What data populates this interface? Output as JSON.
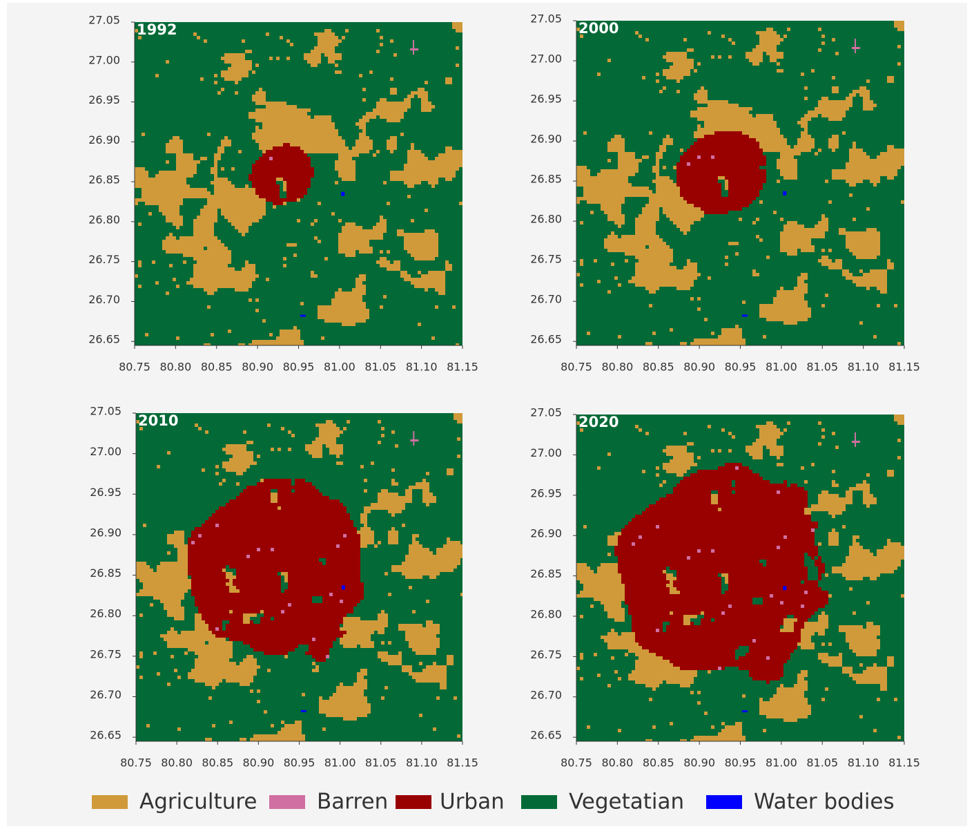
{
  "chart_data": [
    {
      "type": "map",
      "title": "1992",
      "xlim": [
        80.75,
        81.15
      ],
      "ylim": [
        26.645,
        27.05
      ],
      "xticks": [
        80.75,
        {
          "value": 80.8,
          "label": "80.80"
        },
        80.85,
        {
          "value": 80.9,
          "label": "80.90"
        },
        80.95,
        {
          "value": 81,
          "label": "81.00"
        },
        81.05,
        {
          "value": 81.1,
          "label": "81.10"
        },
        81.15
      ],
      "yticks": [
        26.65,
        {
          "value": 26.7,
          "label": "26.70"
        },
        26.75,
        {
          "value": 26.8,
          "label": "26.80"
        },
        26.85,
        {
          "value": 26.9,
          "label": "26.90"
        },
        26.95,
        {
          "value": 27,
          "label": "27.00"
        },
        27.05
      ]
    },
    {
      "type": "map",
      "title": "2000",
      "xlim": [
        80.75,
        81.15
      ],
      "ylim": [
        26.645,
        27.05
      ],
      "xticks": [
        80.75,
        {
          "value": 80.8,
          "label": "80.80"
        },
        80.85,
        {
          "value": 80.9,
          "label": "80.90"
        },
        80.95,
        {
          "value": 81,
          "label": "81.00"
        },
        81.05,
        {
          "value": 81.1,
          "label": "81.10"
        },
        81.15
      ],
      "yticks": [
        26.65,
        {
          "value": 26.7,
          "label": "26.70"
        },
        26.75,
        {
          "value": 26.8,
          "label": "26.80"
        },
        26.85,
        {
          "value": 26.9,
          "label": "26.90"
        },
        26.95,
        {
          "value": 27,
          "label": "27.00"
        },
        27.05
      ]
    },
    {
      "type": "map",
      "title": "2010",
      "xlim": [
        80.75,
        81.15
      ],
      "ylim": [
        26.645,
        27.05
      ],
      "xticks": [
        80.75,
        {
          "value": 80.8,
          "label": "80.80"
        },
        80.85,
        {
          "value": 80.9,
          "label": "80.90"
        },
        80.95,
        {
          "value": 81,
          "label": "81.00"
        },
        81.05,
        {
          "value": 81.1,
          "label": "81.10"
        },
        81.15
      ],
      "yticks": [
        26.65,
        {
          "value": 26.7,
          "label": "26.70"
        },
        26.75,
        {
          "value": 26.8,
          "label": "26.80"
        },
        26.85,
        {
          "value": 26.9,
          "label": "26.90"
        },
        26.95,
        {
          "value": 27,
          "label": "27.00"
        },
        27.05
      ]
    },
    {
      "type": "map",
      "title": "2020",
      "xlim": [
        80.75,
        81.15
      ],
      "ylim": [
        26.645,
        27.05
      ],
      "xticks": [
        80.75,
        {
          "value": 80.8,
          "label": "80.80"
        },
        80.85,
        {
          "value": 80.9,
          "label": "80.90"
        },
        80.95,
        {
          "value": 81,
          "label": "81.00"
        },
        81.05,
        {
          "value": 81.1,
          "label": "81.10"
        },
        81.15
      ],
      "yticks": [
        26.65,
        {
          "value": 26.7,
          "label": "26.70"
        },
        26.75,
        {
          "value": 26.8,
          "label": "26.80"
        },
        26.85,
        {
          "value": 26.9,
          "label": "26.90"
        },
        26.95,
        {
          "value": 27,
          "label": "27.00"
        },
        27.05
      ]
    }
  ],
  "legend": {
    "items": [
      {
        "name": "Agriculture",
        "color": "#d09a3a"
      },
      {
        "name": "Barren",
        "color": "#cf6fa2"
      },
      {
        "name": "Urban",
        "color": "#990000"
      },
      {
        "name": "Vegetatian",
        "color": "#036a37"
      },
      {
        "name": "Water bodies",
        "color": "#0000ff"
      }
    ]
  }
}
